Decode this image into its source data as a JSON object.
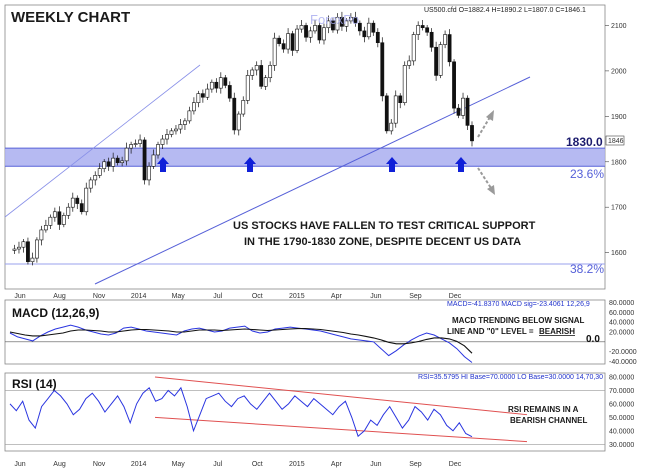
{
  "chart_data": [
    {
      "type": "candlestick",
      "title": "WEEKLY CHART",
      "instrument_info": "US500.cfd O=1882.4 H=1890.2 L=1807.0 C=1846.1",
      "watermark": "ForexPo",
      "ylim": [
        1520,
        2145
      ],
      "y_ticks": [
        1600,
        1700,
        1800,
        1900,
        2000,
        2100
      ],
      "last_price_label": "1846",
      "x_ticks": [
        "Jun",
        "Aug",
        "Nov",
        "2014",
        "May",
        "Jul",
        "Oct",
        "2015",
        "Apr",
        "Jun",
        "Sep",
        "Dec"
      ],
      "ohlc_path": [
        1605,
        1608,
        1612,
        1624,
        1580,
        1588,
        1628,
        1650,
        1660,
        1678,
        1690,
        1662,
        1682,
        1700,
        1720,
        1708,
        1690,
        1742,
        1760,
        1770,
        1785,
        1800,
        1790,
        1808,
        1798,
        1802,
        1830,
        1838,
        1840,
        1848,
        1760,
        1790,
        1815,
        1838,
        1850,
        1860,
        1868,
        1872,
        1882,
        1890,
        1912,
        1930,
        1950,
        1942,
        1960,
        1975,
        1962,
        1985,
        1968,
        1940,
        1870,
        1905,
        1935,
        1990,
        2002,
        2012,
        1966,
        1985,
        2012,
        2072,
        2060,
        2048,
        2082,
        2045,
        2092,
        2100,
        2074,
        2088,
        2100,
        2068,
        2095,
        2110,
        2090,
        2118,
        2098,
        2110,
        2118,
        2105,
        2088,
        2075,
        2105,
        2085,
        2062,
        1945,
        1868,
        1885,
        1945,
        1930,
        2012,
        2022,
        2080,
        2100,
        2095,
        2085,
        2052,
        1990,
        2058,
        2080,
        2020,
        1918,
        1902,
        1940,
        1880,
        1846
      ],
      "levels": [
        {
          "label": "1830.0",
          "value": 1830
        },
        {
          "label": "23.6%",
          "value": 1790
        },
        {
          "label": "38.2%",
          "value": 1575
        }
      ],
      "annotation": [
        "US STOCKS HAVE FALLEN TO TEST CRITICAL SUPPORT",
        "IN THE 1790-1830 ZONE, DESPITE DECENT US DATA"
      ]
    },
    {
      "type": "line",
      "title": "MACD (12,26,9)",
      "readout": "MACD=-41.8370 MACD sig=-23.4061 12,26,9",
      "ylim": [
        -45,
        85
      ],
      "y_ticks": [
        -40,
        -20,
        0,
        20,
        40,
        60,
        80
      ],
      "y_tick_labels": [
        "-40.0000",
        "-20.0000",
        "0.0",
        "20.0000",
        "40.0000",
        "60.0000",
        "80.0000"
      ],
      "zero_label": "0.0",
      "series": [
        {
          "name": "MACD",
          "color": "#2a35e0",
          "values": [
            18,
            10,
            6,
            2,
            12,
            20,
            26,
            30,
            34,
            30,
            24,
            20,
            16,
            14,
            18,
            28,
            30,
            26,
            22,
            20,
            18,
            16,
            14,
            22,
            26,
            28,
            24,
            20,
            22,
            28,
            30,
            32,
            22,
            18,
            20,
            26,
            28,
            30,
            28,
            26,
            24,
            22,
            18,
            14,
            10,
            6,
            4,
            2,
            0,
            -14,
            -28,
            -18,
            -6,
            4,
            12,
            18,
            14,
            6,
            -2,
            -14,
            -30,
            -42
          ]
        },
        {
          "name": "MACD sig",
          "color": "#111111",
          "values": [
            20,
            17,
            14,
            12,
            12,
            14,
            16,
            18,
            22,
            24,
            24,
            23,
            22,
            20,
            20,
            22,
            24,
            25,
            25,
            24,
            23,
            22,
            20,
            20,
            22,
            24,
            24,
            24,
            23,
            24,
            25,
            26,
            25,
            24,
            23,
            24,
            25,
            26,
            27,
            27,
            26,
            25,
            23,
            21,
            19,
            16,
            14,
            11,
            8,
            4,
            -1,
            -4,
            -4,
            -2,
            1,
            5,
            8,
            8,
            6,
            1,
            -8,
            -23
          ]
        }
      ],
      "annotation": [
        "MACD TRENDING BELOW SIGNAL",
        "LINE AND \"0\" LEVEL = ",
        "BEARISH"
      ]
    },
    {
      "type": "line",
      "title": "RSI (14)",
      "readout": "RSI=35.5795 HI Base=70.0000 LO Base=30.0000 14,70,30",
      "ylim": [
        25,
        83
      ],
      "y_ticks": [
        30,
        40,
        50,
        60,
        70,
        80
      ],
      "y_tick_labels": [
        "30.0000",
        "40.0000",
        "50.0000",
        "60.0000",
        "70.0000",
        "80.0000"
      ],
      "levels": [
        30,
        70
      ],
      "series": [
        {
          "name": "RSI",
          "color": "#2a35e0",
          "values": [
            60,
            55,
            62,
            48,
            42,
            58,
            64,
            70,
            66,
            60,
            52,
            56,
            64,
            68,
            62,
            54,
            60,
            66,
            58,
            46,
            60,
            68,
            72,
            62,
            64,
            70,
            66,
            72,
            58,
            40,
            52,
            64,
            66,
            68,
            62,
            58,
            64,
            66,
            60,
            56,
            62,
            68,
            62,
            56,
            60,
            66,
            62,
            58,
            64,
            60,
            56,
            52,
            58,
            62,
            50,
            36,
            40,
            48,
            44,
            52,
            58,
            50,
            42,
            48,
            58,
            54,
            48,
            56,
            52,
            44,
            40,
            46,
            38,
            35.6
          ]
        }
      ],
      "channel": [
        {
          "from": {
            "x": 0.25,
            "y": 80
          },
          "to": {
            "x": 0.87,
            "y": 52
          }
        },
        {
          "from": {
            "x": 0.25,
            "y": 50
          },
          "to": {
            "x": 0.87,
            "y": 32
          }
        }
      ],
      "annotation": [
        "RSI REMAINS IN A",
        "BEARISH CHANNEL"
      ]
    }
  ]
}
